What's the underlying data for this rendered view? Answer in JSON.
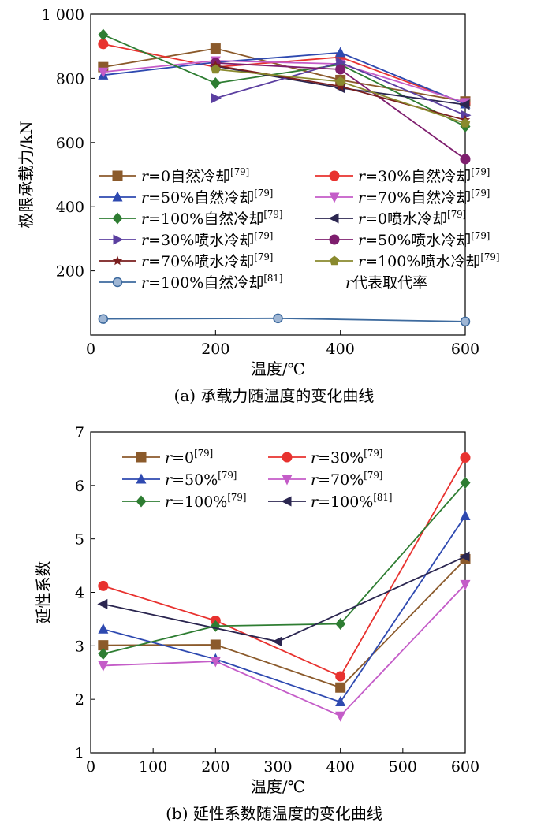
{
  "chart_data": [
    {
      "type": "line",
      "caption": "(a) 承载力随温度的变化曲线",
      "xlabel": "温度/℃",
      "ylabel": "极限承载力/kN",
      "xlim": [
        0,
        600
      ],
      "ylim": [
        0,
        1000
      ],
      "xticks": [
        0,
        200,
        400,
        600
      ],
      "yticks": [
        200,
        400,
        600,
        800,
        1000
      ],
      "ytick_labels": [
        "200",
        "400",
        "600",
        "800",
        "1 000"
      ],
      "grid": false,
      "legend_placement": "center-left",
      "legend_note": "r代表取代率",
      "series": [
        {
          "prefix": "r",
          "name": "=0自然冷却",
          "ref": "[79]",
          "color": "#8B5A2B",
          "marker": "square",
          "x": [
            20,
            200,
            400,
            600
          ],
          "y": [
            835,
            893,
            795,
            728
          ]
        },
        {
          "prefix": "r",
          "name": "=30%自然冷却",
          "ref": "[79]",
          "color": "#E8322F",
          "marker": "circle",
          "x": [
            20,
            200,
            400,
            600
          ],
          "y": [
            907,
            835,
            866,
            722
          ]
        },
        {
          "prefix": "r",
          "name": "=50%自然冷却",
          "ref": "[79]",
          "color": "#2E49B0",
          "marker": "triangle-up",
          "x": [
            20,
            200,
            400,
            600
          ],
          "y": [
            810,
            850,
            880,
            720
          ]
        },
        {
          "prefix": "r",
          "name": "=70%自然冷却",
          "ref": "[79]",
          "color": "#C45CC8",
          "marker": "triangle-down",
          "x": [
            20,
            200,
            400,
            600
          ],
          "y": [
            820,
            855,
            845,
            725
          ]
        },
        {
          "prefix": "r",
          "name": "=100%自然冷却",
          "ref": "[79]",
          "color": "#2E7D32",
          "marker": "diamond",
          "x": [
            20,
            200,
            400,
            600
          ],
          "y": [
            936,
            785,
            843,
            650
          ]
        },
        {
          "prefix": "r",
          "name": "=0喷水冷却",
          "ref": "[79]",
          "color": "#2B2650",
          "marker": "triangle-left",
          "x": [
            200,
            400,
            600
          ],
          "y": [
            838,
            770,
            718
          ]
        },
        {
          "prefix": "r",
          "name": "=30%喷水冷却",
          "ref": "[79]",
          "color": "#5B3FA0",
          "marker": "triangle-right",
          "x": [
            200,
            400,
            600
          ],
          "y": [
            738,
            850,
            685
          ]
        },
        {
          "prefix": "r",
          "name": "=50%喷水冷却",
          "ref": "[79]",
          "color": "#7E1E6E",
          "marker": "circle",
          "x": [
            200,
            400,
            600
          ],
          "y": [
            848,
            828,
            548
          ]
        },
        {
          "prefix": "r",
          "name": "=70%喷水冷却",
          "ref": "[79]",
          "color": "#7A1E1E",
          "marker": "star",
          "x": [
            200,
            400,
            600
          ],
          "y": [
            840,
            775,
            670
          ]
        },
        {
          "prefix": "r",
          "name": "=100%喷水冷却",
          "ref": "[79]",
          "color": "#8A8A2E",
          "marker": "pentagon",
          "x": [
            200,
            400,
            600
          ],
          "y": [
            828,
            790,
            660
          ]
        },
        {
          "prefix": "r",
          "name": "=100%自然冷却",
          "ref": "[81]",
          "color": "#3D6A9E",
          "marker": "sphere",
          "x": [
            20,
            300,
            600
          ],
          "y": [
            50,
            52,
            42
          ]
        }
      ]
    },
    {
      "type": "line",
      "caption": "(b) 延性系数随温度的变化曲线",
      "xlabel": "温度/℃",
      "ylabel": "延性系数",
      "xlim": [
        0,
        600
      ],
      "ylim": [
        1,
        7
      ],
      "xticks": [
        0,
        100,
        200,
        300,
        400,
        500,
        600
      ],
      "yticks": [
        1,
        2,
        3,
        4,
        5,
        6,
        7
      ],
      "grid": false,
      "legend_placement": "top-left",
      "series": [
        {
          "prefix": "r",
          "name": "=0",
          "ref": "[79]",
          "color": "#8B5A2B",
          "marker": "square",
          "x": [
            20,
            200,
            400,
            600
          ],
          "y": [
            3.01,
            3.02,
            2.22,
            4.62
          ]
        },
        {
          "prefix": "r",
          "name": "=30%",
          "ref": "[79]",
          "color": "#E8322F",
          "marker": "circle",
          "x": [
            20,
            200,
            400,
            600
          ],
          "y": [
            4.12,
            3.47,
            2.43,
            6.52
          ]
        },
        {
          "prefix": "r",
          "name": "=50%",
          "ref": "[79]",
          "color": "#2E49B0",
          "marker": "triangle-up",
          "x": [
            20,
            200,
            400,
            600
          ],
          "y": [
            3.31,
            2.75,
            1.95,
            5.43
          ]
        },
        {
          "prefix": "r",
          "name": "=70%",
          "ref": "[79]",
          "color": "#C45CC8",
          "marker": "triangle-down",
          "x": [
            20,
            200,
            400,
            600
          ],
          "y": [
            2.63,
            2.71,
            1.69,
            4.15
          ]
        },
        {
          "prefix": "r",
          "name": "=100%",
          "ref": "[79]",
          "color": "#2E7D32",
          "marker": "diamond",
          "x": [
            20,
            200,
            400,
            600
          ],
          "y": [
            2.85,
            3.37,
            3.41,
            6.05
          ]
        },
        {
          "prefix": "r",
          "name": "=100%",
          "ref": "[81]",
          "color": "#2B2650",
          "marker": "triangle-left",
          "x": [
            20,
            300,
            600
          ],
          "y": [
            3.78,
            3.08,
            4.67
          ]
        }
      ]
    }
  ]
}
